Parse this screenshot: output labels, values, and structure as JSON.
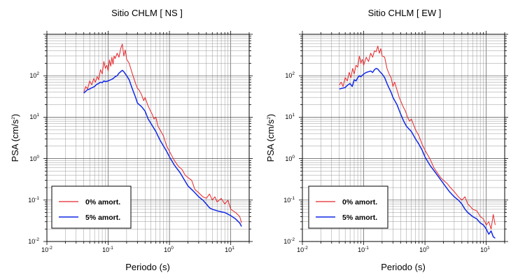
{
  "chart_data": [
    {
      "type": "line",
      "title": "Sitio CHLM [ NS ]",
      "xlabel": "Periodo (s)",
      "ylabel_base": "PSA (cm/s",
      "ylabel_sup": "2",
      "ylabel_end": ")",
      "xscale": "log",
      "yscale": "log",
      "xlim": [
        0.01,
        20
      ],
      "ylim": [
        0.01,
        1000
      ],
      "grid": true,
      "legend_position": "bottom-left",
      "xtick_labels": [
        {
          "value": 0.01,
          "base": "10",
          "exp": "-2"
        },
        {
          "value": 0.1,
          "base": "10",
          "exp": "-1"
        },
        {
          "value": 1,
          "base": "10",
          "exp": "0"
        },
        {
          "value": 10,
          "base": "10",
          "exp": "1"
        }
      ],
      "ytick_labels": [
        {
          "value": 0.01,
          "base": "10",
          "exp": "-2"
        },
        {
          "value": 0.1,
          "base": "10",
          "exp": "-1"
        },
        {
          "value": 1,
          "base": "10",
          "exp": "0"
        },
        {
          "value": 10,
          "base": "10",
          "exp": "1"
        },
        {
          "value": 100,
          "base": "10",
          "exp": "2"
        }
      ],
      "series": [
        {
          "name": "0% amort.",
          "color": "#e8262a",
          "points": [
            [
              0.04,
              40
            ],
            [
              0.043,
              55
            ],
            [
              0.046,
              48
            ],
            [
              0.05,
              75
            ],
            [
              0.054,
              60
            ],
            [
              0.058,
              85
            ],
            [
              0.062,
              70
            ],
            [
              0.066,
              95
            ],
            [
              0.07,
              80
            ],
            [
              0.075,
              140
            ],
            [
              0.08,
              110
            ],
            [
              0.085,
              220
            ],
            [
              0.09,
              150
            ],
            [
              0.095,
              180
            ],
            [
              0.1,
              130
            ],
            [
              0.105,
              240
            ],
            [
              0.11,
              170
            ],
            [
              0.115,
              280
            ],
            [
              0.12,
              190
            ],
            [
              0.125,
              300
            ],
            [
              0.13,
              260
            ],
            [
              0.14,
              350
            ],
            [
              0.15,
              280
            ],
            [
              0.16,
              450
            ],
            [
              0.17,
              580
            ],
            [
              0.18,
              300
            ],
            [
              0.19,
              420
            ],
            [
              0.2,
              250
            ],
            [
              0.22,
              200
            ],
            [
              0.24,
              130
            ],
            [
              0.26,
              90
            ],
            [
              0.28,
              65
            ],
            [
              0.3,
              50
            ],
            [
              0.32,
              45
            ],
            [
              0.35,
              35
            ],
            [
              0.38,
              25
            ],
            [
              0.4,
              30
            ],
            [
              0.44,
              20
            ],
            [
              0.48,
              15
            ],
            [
              0.52,
              12
            ],
            [
              0.56,
              9
            ],
            [
              0.6,
              10
            ],
            [
              0.65,
              6
            ],
            [
              0.7,
              5
            ],
            [
              0.8,
              3.5
            ],
            [
              0.9,
              2
            ],
            [
              1.0,
              1.5
            ],
            [
              1.2,
              0.9
            ],
            [
              1.4,
              0.65
            ],
            [
              1.6,
              0.55
            ],
            [
              1.8,
              0.4
            ],
            [
              2.0,
              0.35
            ],
            [
              2.3,
              0.3
            ],
            [
              2.6,
              0.18
            ],
            [
              3.0,
              0.15
            ],
            [
              3.5,
              0.12
            ],
            [
              4.0,
              0.11
            ],
            [
              4.5,
              0.14
            ],
            [
              5.0,
              0.1
            ],
            [
              5.5,
              0.12
            ],
            [
              6.0,
              0.09
            ],
            [
              7.0,
              0.11
            ],
            [
              8.0,
              0.08
            ],
            [
              9.0,
              0.1
            ],
            [
              10.0,
              0.06
            ],
            [
              12.0,
              0.05
            ],
            [
              14.0,
              0.04
            ],
            [
              15.0,
              0.028
            ]
          ]
        },
        {
          "name": "5% amort.",
          "color": "#1228e6",
          "points": [
            [
              0.04,
              38
            ],
            [
              0.045,
              45
            ],
            [
              0.05,
              48
            ],
            [
              0.055,
              52
            ],
            [
              0.06,
              55
            ],
            [
              0.065,
              62
            ],
            [
              0.07,
              65
            ],
            [
              0.075,
              70
            ],
            [
              0.08,
              68
            ],
            [
              0.085,
              75
            ],
            [
              0.09,
              72
            ],
            [
              0.1,
              75
            ],
            [
              0.11,
              80
            ],
            [
              0.12,
              85
            ],
            [
              0.13,
              95
            ],
            [
              0.14,
              100
            ],
            [
              0.15,
              115
            ],
            [
              0.16,
              125
            ],
            [
              0.17,
              135
            ],
            [
              0.18,
              125
            ],
            [
              0.2,
              100
            ],
            [
              0.22,
              80
            ],
            [
              0.24,
              55
            ],
            [
              0.26,
              40
            ],
            [
              0.28,
              30
            ],
            [
              0.3,
              22
            ],
            [
              0.35,
              18
            ],
            [
              0.4,
              14
            ],
            [
              0.45,
              9
            ],
            [
              0.5,
              7
            ],
            [
              0.6,
              4.5
            ],
            [
              0.7,
              2.8
            ],
            [
              0.8,
              2
            ],
            [
              0.9,
              1.5
            ],
            [
              1.0,
              1.1
            ],
            [
              1.2,
              0.7
            ],
            [
              1.5,
              0.45
            ],
            [
              2.0,
              0.22
            ],
            [
              2.5,
              0.16
            ],
            [
              3.0,
              0.12
            ],
            [
              3.5,
              0.1
            ],
            [
              4.0,
              0.08
            ],
            [
              4.5,
              0.065
            ],
            [
              5.0,
              0.06
            ],
            [
              6.0,
              0.055
            ],
            [
              7.0,
              0.052
            ],
            [
              8.0,
              0.05
            ],
            [
              10.0,
              0.042
            ],
            [
              12.0,
              0.035
            ],
            [
              14.0,
              0.028
            ],
            [
              15.0,
              0.023
            ]
          ]
        }
      ]
    },
    {
      "type": "line",
      "title": "Sitio CHLM [ EW ]",
      "xlabel": "Periodo (s)",
      "ylabel_base": "PSA (cm/s",
      "ylabel_sup": "2",
      "ylabel_end": ")",
      "xscale": "log",
      "yscale": "log",
      "xlim": [
        0.01,
        20
      ],
      "ylim": [
        0.01,
        1000
      ],
      "grid": true,
      "legend_position": "bottom-left",
      "xtick_labels": [
        {
          "value": 0.01,
          "base": "10",
          "exp": "-2"
        },
        {
          "value": 0.1,
          "base": "10",
          "exp": "-1"
        },
        {
          "value": 1,
          "base": "10",
          "exp": "0"
        },
        {
          "value": 10,
          "base": "10",
          "exp": "1"
        }
      ],
      "ytick_labels": [
        {
          "value": 0.01,
          "base": "10",
          "exp": "-2"
        },
        {
          "value": 0.1,
          "base": "10",
          "exp": "-1"
        },
        {
          "value": 1,
          "base": "10",
          "exp": "0"
        },
        {
          "value": 10,
          "base": "10",
          "exp": "1"
        },
        {
          "value": 100,
          "base": "10",
          "exp": "2"
        }
      ],
      "series": [
        {
          "name": "0% amort.",
          "color": "#e8262a",
          "points": [
            [
              0.04,
              60
            ],
            [
              0.043,
              70
            ],
            [
              0.046,
              55
            ],
            [
              0.05,
              90
            ],
            [
              0.054,
              75
            ],
            [
              0.058,
              120
            ],
            [
              0.062,
              90
            ],
            [
              0.066,
              150
            ],
            [
              0.07,
              110
            ],
            [
              0.075,
              180
            ],
            [
              0.08,
              160
            ],
            [
              0.085,
              300
            ],
            [
              0.09,
              200
            ],
            [
              0.095,
              250
            ],
            [
              0.1,
              180
            ],
            [
              0.11,
              280
            ],
            [
              0.12,
              220
            ],
            [
              0.13,
              350
            ],
            [
              0.14,
              280
            ],
            [
              0.15,
              400
            ],
            [
              0.16,
              380
            ],
            [
              0.17,
              520
            ],
            [
              0.18,
              350
            ],
            [
              0.19,
              450
            ],
            [
              0.2,
              300
            ],
            [
              0.22,
              280
            ],
            [
              0.24,
              150
            ],
            [
              0.26,
              110
            ],
            [
              0.28,
              90
            ],
            [
              0.3,
              55
            ],
            [
              0.32,
              70
            ],
            [
              0.35,
              45
            ],
            [
              0.38,
              30
            ],
            [
              0.4,
              25
            ],
            [
              0.44,
              18
            ],
            [
              0.48,
              14
            ],
            [
              0.52,
              10
            ],
            [
              0.56,
              8
            ],
            [
              0.6,
              9
            ],
            [
              0.7,
              5
            ],
            [
              0.8,
              3.5
            ],
            [
              0.9,
              2.2
            ],
            [
              1.0,
              1.6
            ],
            [
              1.2,
              1
            ],
            [
              1.4,
              0.6
            ],
            [
              1.6,
              0.45
            ],
            [
              1.8,
              0.35
            ],
            [
              2.0,
              0.3
            ],
            [
              2.3,
              0.25
            ],
            [
              2.6,
              0.2
            ],
            [
              3.0,
              0.16
            ],
            [
              3.5,
              0.12
            ],
            [
              4.0,
              0.1
            ],
            [
              4.5,
              0.12
            ],
            [
              5.0,
              0.08
            ],
            [
              5.5,
              0.07
            ],
            [
              6.0,
              0.06
            ],
            [
              7.0,
              0.055
            ],
            [
              8.0,
              0.04
            ],
            [
              9.0,
              0.035
            ],
            [
              10.0,
              0.025
            ],
            [
              11.0,
              0.03
            ],
            [
              12.0,
              0.02
            ],
            [
              13.0,
              0.045
            ],
            [
              14.0,
              0.025
            ]
          ]
        },
        {
          "name": "5% amort.",
          "color": "#1228e6",
          "points": [
            [
              0.04,
              48
            ],
            [
              0.045,
              50
            ],
            [
              0.05,
              52
            ],
            [
              0.055,
              60
            ],
            [
              0.06,
              65
            ],
            [
              0.065,
              55
            ],
            [
              0.07,
              80
            ],
            [
              0.075,
              75
            ],
            [
              0.08,
              90
            ],
            [
              0.085,
              100
            ],
            [
              0.09,
              95
            ],
            [
              0.1,
              110
            ],
            [
              0.11,
              120
            ],
            [
              0.12,
              125
            ],
            [
              0.13,
              130
            ],
            [
              0.14,
              120
            ],
            [
              0.15,
              140
            ],
            [
              0.16,
              150
            ],
            [
              0.17,
              145
            ],
            [
              0.18,
              130
            ],
            [
              0.2,
              110
            ],
            [
              0.22,
              90
            ],
            [
              0.24,
              65
            ],
            [
              0.26,
              50
            ],
            [
              0.28,
              40
            ],
            [
              0.3,
              30
            ],
            [
              0.35,
              20
            ],
            [
              0.4,
              12
            ],
            [
              0.45,
              8
            ],
            [
              0.5,
              6
            ],
            [
              0.6,
              4.5
            ],
            [
              0.7,
              3
            ],
            [
              0.8,
              2.2
            ],
            [
              0.9,
              1.6
            ],
            [
              1.0,
              1.1
            ],
            [
              1.2,
              0.7
            ],
            [
              1.5,
              0.45
            ],
            [
              2.0,
              0.25
            ],
            [
              2.5,
              0.16
            ],
            [
              3.0,
              0.12
            ],
            [
              3.5,
              0.1
            ],
            [
              4.0,
              0.08
            ],
            [
              4.5,
              0.06
            ],
            [
              5.0,
              0.05
            ],
            [
              6.0,
              0.04
            ],
            [
              7.0,
              0.035
            ],
            [
              8.0,
              0.028
            ],
            [
              9.0,
              0.025
            ],
            [
              10.0,
              0.02
            ],
            [
              11.0,
              0.015
            ],
            [
              12.0,
              0.018
            ],
            [
              13.0,
              0.013
            ],
            [
              14.0,
              0.012
            ]
          ]
        }
      ]
    }
  ]
}
